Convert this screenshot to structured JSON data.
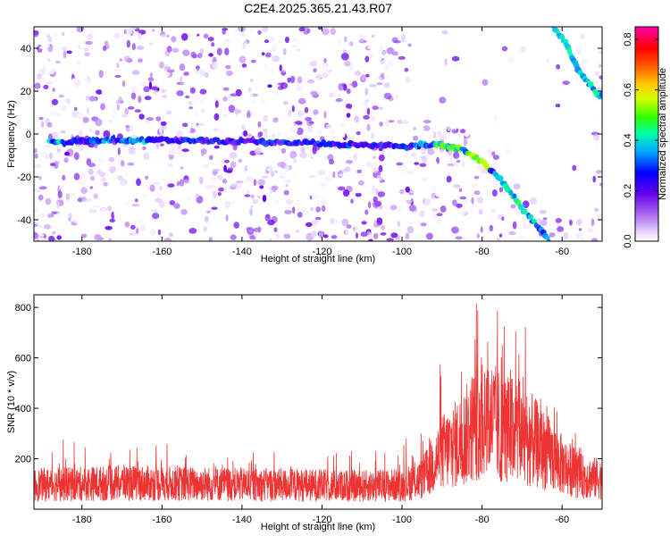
{
  "title": "C2E4.2025.365.21.43.R07",
  "chart_data": [
    {
      "type": "heatmap",
      "xlabel": "Height of straight line (km)",
      "ylabel": "Frequency (Hz)",
      "xlim": [
        -192,
        -50
      ],
      "ylim": [
        -50,
        50
      ],
      "xticks": [
        -180,
        -160,
        -140,
        -120,
        -100,
        -80,
        -60
      ],
      "yticks": [
        -40,
        -20,
        0,
        20,
        40
      ],
      "colorbar": {
        "label": "Normalized spectral amplitude",
        "range": [
          0.0,
          0.85
        ],
        "ticks": [
          0.0,
          0.2,
          0.4,
          0.6,
          0.8
        ],
        "tick_labels": [
          "0.0",
          "0.2",
          "0.4",
          "0.6",
          "0.8"
        ]
      },
      "main_track": [
        [
          -187,
          -4
        ],
        [
          -175,
          -3
        ],
        [
          -165,
          -3
        ],
        [
          -150,
          -3
        ],
        [
          -130,
          -4
        ],
        [
          -110,
          -5
        ],
        [
          -98,
          -6
        ],
        [
          -95,
          -5
        ],
        [
          -90,
          -5
        ],
        [
          -85,
          -7
        ],
        [
          -80,
          -13
        ],
        [
          -77,
          -18
        ],
        [
          -73,
          -27
        ],
        [
          -69,
          -37
        ],
        [
          -65,
          -45
        ],
        [
          -63,
          -50
        ]
      ],
      "upper_track": [
        [
          -62,
          50
        ],
        [
          -59,
          42
        ],
        [
          -56,
          30
        ],
        [
          -53,
          23
        ],
        [
          -51,
          18
        ]
      ]
    },
    {
      "type": "line",
      "xlabel": "Height of straight line (km)",
      "ylabel": "SNR (10 * v/v)",
      "xlim": [
        -192,
        -50
      ],
      "ylim": [
        0,
        850
      ],
      "xticks": [
        -180,
        -160,
        -140,
        -120,
        -100,
        -80,
        -60
      ],
      "yticks": [
        200,
        400,
        600,
        800
      ],
      "color": "#ee3333",
      "envelope": [
        [
          -192,
          120
        ],
        [
          -170,
          130
        ],
        [
          -150,
          125
        ],
        [
          -130,
          120
        ],
        [
          -110,
          115
        ],
        [
          -100,
          120
        ],
        [
          -95,
          150
        ],
        [
          -90,
          280
        ],
        [
          -85,
          340
        ],
        [
          -80,
          480
        ],
        [
          -75,
          400
        ],
        [
          -70,
          380
        ],
        [
          -65,
          300
        ],
        [
          -60,
          220
        ],
        [
          -55,
          160
        ],
        [
          -50,
          150
        ]
      ]
    }
  ]
}
